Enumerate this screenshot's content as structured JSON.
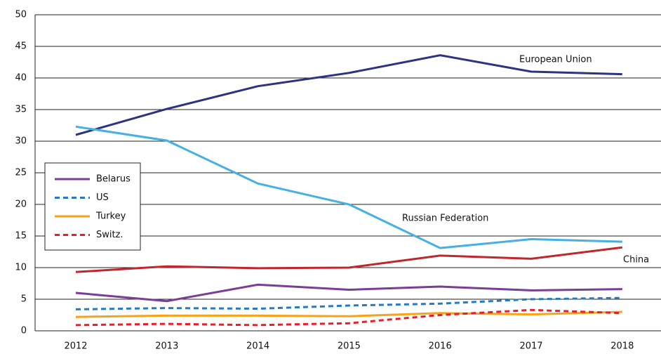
{
  "chart_data": {
    "type": "line",
    "categories": [
      "2012",
      "2013",
      "2014",
      "2015",
      "2016",
      "2017",
      "2018"
    ],
    "series": [
      {
        "name": "European Union",
        "color": "#2e3381",
        "dash": false,
        "values": [
          31,
          35.1,
          38.7,
          40.8,
          43.6,
          41,
          40.6
        ]
      },
      {
        "name": "Russian Federation",
        "color": "#45b0e1",
        "dash": false,
        "values": [
          32.3,
          30.1,
          23.3,
          20,
          13.1,
          14.5,
          14.1
        ]
      },
      {
        "name": "China",
        "color": "#c0272d",
        "dash": false,
        "values": [
          9.3,
          10.2,
          9.9,
          10,
          11.9,
          11.4,
          13.2
        ]
      },
      {
        "name": "Belarus",
        "color": "#7c3d97",
        "dash": false,
        "values": [
          6,
          4.7,
          7.3,
          6.5,
          7,
          6.4,
          6.6
        ]
      },
      {
        "name": "US",
        "color": "#2a79bd",
        "dash": true,
        "values": [
          3.4,
          3.6,
          3.5,
          4,
          4.3,
          5,
          5.2
        ]
      },
      {
        "name": "Turkey",
        "color": "#f5a31a",
        "dash": false,
        "values": [
          2.2,
          2.4,
          2.4,
          2.3,
          2.8,
          2.6,
          3.0
        ]
      },
      {
        "name": "Switz.",
        "color": "#e5202a",
        "dash": true,
        "values": [
          0.9,
          1.1,
          0.9,
          1.2,
          2.5,
          3.3,
          2.8
        ]
      }
    ],
    "ylim": [
      0,
      50
    ],
    "yticks": [
      0,
      5,
      10,
      15,
      20,
      25,
      30,
      35,
      40,
      45,
      50
    ],
    "grid": true
  }
}
